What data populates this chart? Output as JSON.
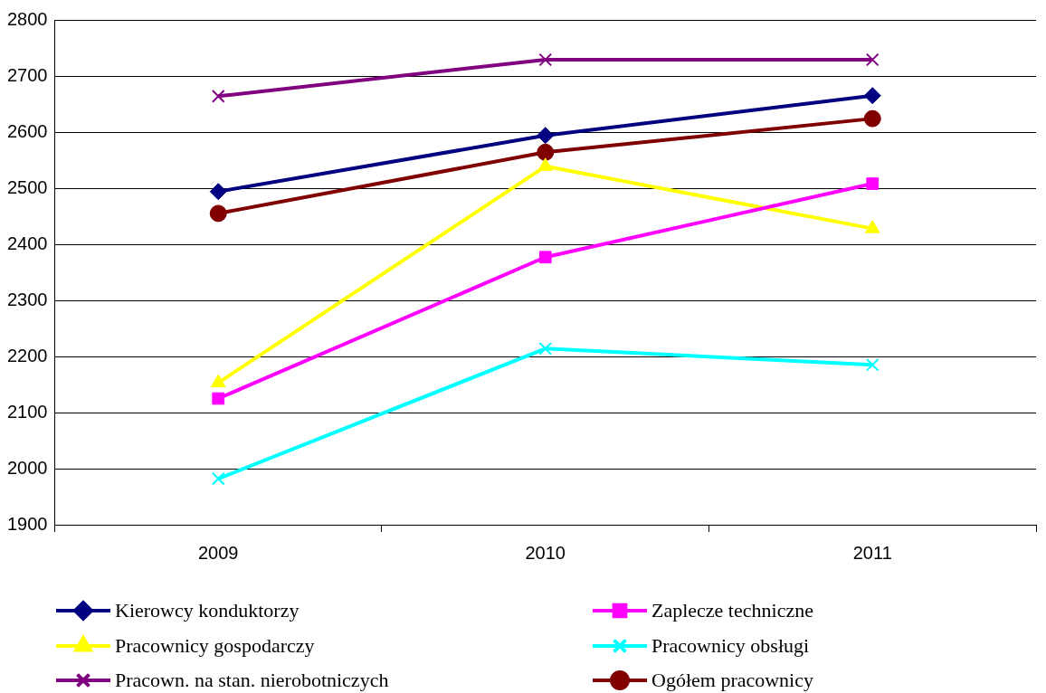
{
  "chart_data": {
    "type": "line",
    "categories": [
      "2009",
      "2010",
      "2011"
    ],
    "series": [
      {
        "name": "Kierowcy konduktorzy",
        "color": "#000080",
        "marker": "diamond",
        "values": [
          2494,
          2594,
          2665
        ]
      },
      {
        "name": "Zaplecze techniczne",
        "color": "#ff00ff",
        "marker": "square",
        "values": [
          2125,
          2377,
          2508
        ]
      },
      {
        "name": "Pracownicy gospodarczy",
        "color": "#ffff00",
        "marker": "triangle",
        "values": [
          2153,
          2539,
          2428
        ]
      },
      {
        "name": "Pracownicy obsługi",
        "color": "#00ffff",
        "marker": "cross",
        "values": [
          1982,
          2214,
          2185
        ]
      },
      {
        "name": "Pracown. na stan. nierobotniczych",
        "color": "#800080",
        "marker": "cross",
        "values": [
          2664,
          2729,
          2729
        ]
      },
      {
        "name": "Ogółem pracownicy",
        "color": "#800000",
        "marker": "circle",
        "values": [
          2455,
          2564,
          2624
        ]
      }
    ],
    "ylim": [
      1900,
      2800
    ],
    "yticks": [
      1900,
      2000,
      2100,
      2200,
      2300,
      2400,
      2500,
      2600,
      2700,
      2800
    ],
    "grid": "y",
    "legend": "bottom",
    "line_style": "solid"
  }
}
